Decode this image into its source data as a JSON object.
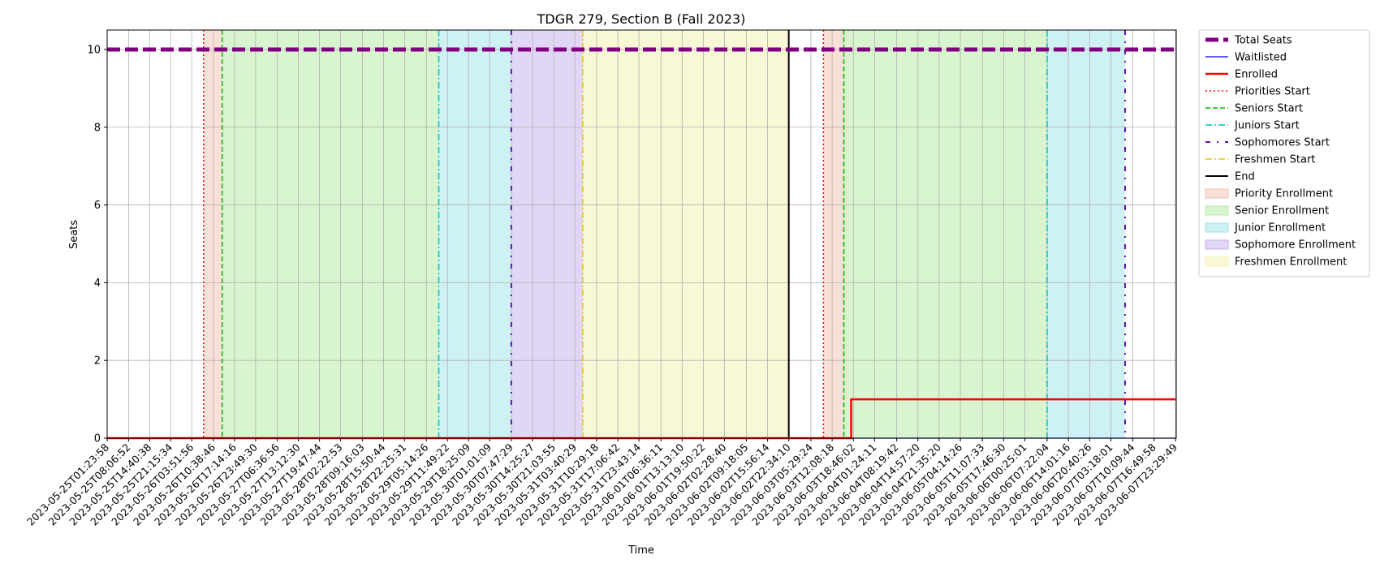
{
  "chart_data": {
    "type": "line",
    "title": "TDGR 279, Section B (Fall 2023)",
    "xlabel": "Time",
    "ylabel": "Seats",
    "ylim": [
      0,
      10.5
    ],
    "yticks": [
      0,
      2,
      4,
      6,
      8,
      10
    ],
    "grid": true,
    "legend_position": "outside-right",
    "x_tick_labels": [
      "2023-05-25T01:23:58",
      "2023-05-25T08:06:52",
      "2023-05-25T14:40:38",
      "2023-05-25T21:15:34",
      "2023-05-26T03:51:56",
      "2023-05-26T10:38:46",
      "2023-05-26T17:14:16",
      "2023-05-26T23:49:30",
      "2023-05-27T06:36:56",
      "2023-05-27T13:12:30",
      "2023-05-27T19:47:44",
      "2023-05-28T02:22:53",
      "2023-05-28T09:16:03",
      "2023-05-28T15:50:44",
      "2023-05-28T22:25:31",
      "2023-05-29T05:14:26",
      "2023-05-29T11:49:22",
      "2023-05-29T18:25:09",
      "2023-05-30T01:01:09",
      "2023-05-30T07:47:29",
      "2023-05-30T14:25:27",
      "2023-05-30T21:03:55",
      "2023-05-31T03:40:29",
      "2023-05-31T10:29:18",
      "2023-05-31T17:06:42",
      "2023-05-31T23:43:14",
      "2023-06-01T06:36:11",
      "2023-06-01T13:13:10",
      "2023-06-01T19:50:22",
      "2023-06-02T02:28:40",
      "2023-06-02T09:18:05",
      "2023-06-02T15:56:14",
      "2023-06-02T22:34:10",
      "2023-06-03T05:29:24",
      "2023-06-03T12:08:18",
      "2023-06-03T18:46:02",
      "2023-06-04T01:24:11",
      "2023-06-04T08:19:42",
      "2023-06-04T14:57:20",
      "2023-06-04T21:35:20",
      "2023-06-05T04:14:26",
      "2023-06-05T11:07:33",
      "2023-06-05T17:46:30",
      "2023-06-06T00:25:01",
      "2023-06-06T07:22:04",
      "2023-06-06T14:01:16",
      "2023-06-06T20:40:26",
      "2023-06-07T03:18:01",
      "2023-06-07T10:09:44",
      "2023-06-07T16:49:58",
      "2023-06-07T23:29:49"
    ],
    "series": [
      {
        "name": "Total Seats",
        "color": "#800080",
        "style": "dashed-thick",
        "points": [
          {
            "x": "2023-05-25T01:23:58",
            "y": 10
          },
          {
            "x": "2023-06-07T23:29:49",
            "y": 10
          }
        ]
      },
      {
        "name": "Waitlisted",
        "color": "#0000ff",
        "style": "solid-thin",
        "points": [
          {
            "x": "2023-05-25T01:23:58",
            "y": 0
          },
          {
            "x": "2023-06-07T23:29:49",
            "y": 0
          }
        ]
      },
      {
        "name": "Enrolled",
        "color": "#ff0000",
        "style": "solid",
        "points": [
          {
            "x": "2023-05-25T01:23:58",
            "y": 0
          },
          {
            "x": "2023-06-03T18:05:00",
            "y": 0
          },
          {
            "x": "2023-06-03T18:05:00",
            "y": 1
          },
          {
            "x": "2023-06-07T23:29:49",
            "y": 1
          }
        ]
      }
    ],
    "markers": [
      {
        "name": "Priorities Start",
        "color": "#ff0000",
        "style": "dotted",
        "x": [
          "2023-05-26T07:33:00",
          "2023-06-03T09:25:00"
        ]
      },
      {
        "name": "Seniors Start",
        "color": "#00bb00",
        "style": "dashed",
        "x": [
          "2023-05-26T13:22:00",
          "2023-06-03T15:47:00"
        ]
      },
      {
        "name": "Juniors Start",
        "color": "#00bfbf",
        "style": "dashdot",
        "x": [
          "2023-05-29T09:07:00",
          "2023-06-06T07:22:04"
        ]
      },
      {
        "name": "Sophomores Start",
        "color": "#6a0dad",
        "style": "loosely-dashdot",
        "x": [
          "2023-05-30T07:47:29",
          "2023-06-07T07:45:00"
        ]
      },
      {
        "name": "Freshmen Start",
        "color": "#e6c800",
        "style": "dashdot",
        "x": [
          "2023-05-31T06:10:00"
        ]
      },
      {
        "name": "End",
        "color": "#000000",
        "style": "solid",
        "x": [
          "2023-06-02T22:34:10"
        ]
      }
    ],
    "regions": [
      {
        "name": "Priority Enrollment",
        "color": "#f4c2b0",
        "spans": [
          [
            "2023-05-26T07:33:00",
            "2023-05-26T13:22:00"
          ],
          [
            "2023-06-03T09:25:00",
            "2023-06-03T15:47:00"
          ]
        ]
      },
      {
        "name": "Senior Enrollment",
        "color": "#b2eca0",
        "spans": [
          [
            "2023-05-26T13:22:00",
            "2023-05-29T09:07:00"
          ],
          [
            "2023-06-03T15:47:00",
            "2023-06-06T07:22:04"
          ]
        ]
      },
      {
        "name": "Junior Enrollment",
        "color": "#9ee3e8",
        "spans": [
          [
            "2023-05-29T09:07:00",
            "2023-05-30T07:47:29"
          ],
          [
            "2023-06-06T07:22:04",
            "2023-06-07T07:45:00"
          ]
        ]
      },
      {
        "name": "Sophomore Enrollment",
        "color": "#c6aeee",
        "spans": [
          [
            "2023-05-30T07:47:29",
            "2023-05-31T06:10:00"
          ]
        ]
      },
      {
        "name": "Freshmen Enrollment",
        "color": "#f2f2b0",
        "spans": [
          [
            "2023-05-31T06:10:00",
            "2023-06-02T22:34:10"
          ]
        ]
      }
    ]
  }
}
